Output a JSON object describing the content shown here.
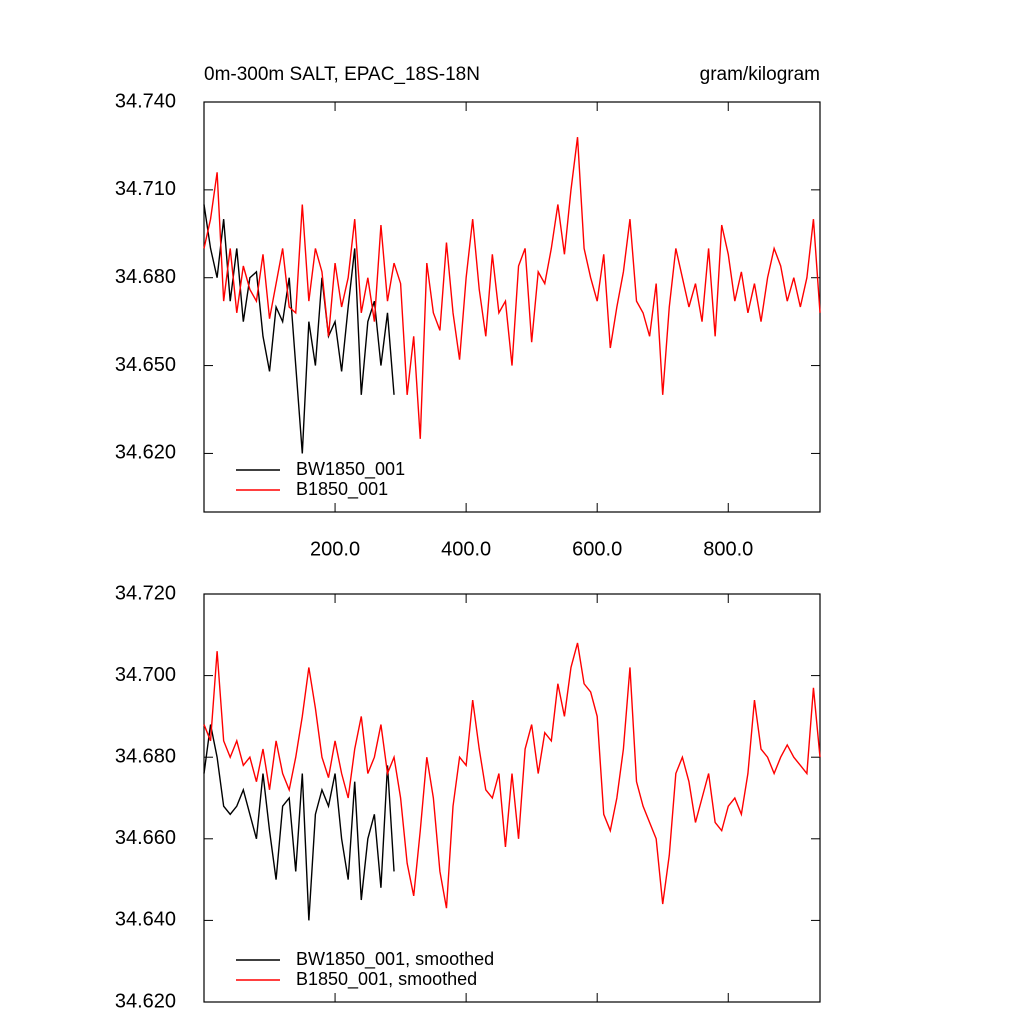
{
  "chart_data": [
    {
      "type": "line",
      "title": "0m-300m SALT, EPAC_18S-18N",
      "units": "gram/kilogram",
      "xlim": [
        0,
        940
      ],
      "xticks": [
        {
          "value": 200,
          "label": "200.0"
        },
        {
          "value": 400,
          "label": "400.0"
        },
        {
          "value": 600,
          "label": "600.0"
        },
        {
          "value": 800,
          "label": "800.0"
        }
      ],
      "ylim": [
        34.6,
        34.74
      ],
      "yticks": [
        {
          "value": 34.62,
          "label": "34.620"
        },
        {
          "value": 34.65,
          "label": "34.650"
        },
        {
          "value": 34.68,
          "label": "34.680"
        },
        {
          "value": 34.71,
          "label": "34.710"
        },
        {
          "value": 34.74,
          "label": "34.740"
        }
      ],
      "legend": "lower left",
      "series": [
        {
          "name": "BW1850_001",
          "color": "#000000",
          "x": [
            0,
            10,
            20,
            30,
            40,
            50,
            60,
            70,
            80,
            90,
            100,
            110,
            120,
            130,
            140,
            150,
            160,
            170,
            180,
            190,
            200,
            210,
            220,
            230,
            240,
            250,
            260,
            270,
            280,
            290
          ],
          "values": [
            34.705,
            34.69,
            34.68,
            34.7,
            34.672,
            34.69,
            34.665,
            34.68,
            34.682,
            34.66,
            34.648,
            34.67,
            34.665,
            34.68,
            34.65,
            34.62,
            34.665,
            34.65,
            34.68,
            34.66,
            34.665,
            34.648,
            34.67,
            34.69,
            34.64,
            34.665,
            34.672,
            34.65,
            34.668,
            34.64
          ]
        },
        {
          "name": "B1850_001",
          "color": "#ff0000",
          "x": [
            0,
            10,
            20,
            30,
            40,
            50,
            60,
            70,
            80,
            90,
            100,
            110,
            120,
            130,
            140,
            150,
            160,
            170,
            180,
            190,
            200,
            210,
            220,
            230,
            240,
            250,
            260,
            270,
            280,
            290,
            300,
            310,
            320,
            330,
            340,
            350,
            360,
            370,
            380,
            390,
            400,
            410,
            420,
            430,
            440,
            450,
            460,
            470,
            480,
            490,
            500,
            510,
            520,
            530,
            540,
            550,
            560,
            570,
            580,
            590,
            600,
            610,
            620,
            630,
            640,
            650,
            660,
            670,
            680,
            690,
            700,
            710,
            720,
            730,
            740,
            750,
            760,
            770,
            780,
            790,
            800,
            810,
            820,
            830,
            840,
            850,
            860,
            870,
            880,
            890,
            900,
            910,
            920,
            930,
            940
          ],
          "values": [
            34.69,
            34.7,
            34.716,
            34.672,
            34.69,
            34.668,
            34.684,
            34.676,
            34.672,
            34.688,
            34.666,
            34.678,
            34.69,
            34.67,
            34.668,
            34.705,
            34.672,
            34.69,
            34.682,
            34.66,
            34.685,
            34.67,
            34.68,
            34.7,
            34.668,
            34.68,
            34.665,
            34.698,
            34.672,
            34.685,
            34.678,
            34.64,
            34.66,
            34.625,
            34.685,
            34.668,
            34.662,
            34.692,
            34.668,
            34.652,
            34.68,
            34.7,
            34.676,
            34.66,
            34.688,
            34.668,
            34.672,
            34.65,
            34.684,
            34.69,
            34.658,
            34.682,
            34.678,
            34.69,
            34.705,
            34.688,
            34.71,
            34.728,
            34.69,
            34.68,
            34.672,
            34.688,
            34.656,
            34.67,
            34.682,
            34.7,
            34.672,
            34.668,
            34.66,
            34.678,
            34.64,
            34.67,
            34.69,
            34.68,
            34.67,
            34.678,
            34.665,
            34.69,
            34.66,
            34.698,
            34.688,
            34.672,
            34.682,
            34.668,
            34.678,
            34.665,
            34.68,
            34.69,
            34.684,
            34.672,
            34.68,
            34.67,
            34.68,
            34.7,
            34.668
          ]
        }
      ]
    },
    {
      "type": "line",
      "xlim": [
        0,
        940
      ],
      "xticks": [
        200,
        400,
        600,
        800
      ],
      "ylim": [
        34.62,
        34.72
      ],
      "yticks": [
        {
          "value": 34.62,
          "label": "34.620"
        },
        {
          "value": 34.64,
          "label": "34.640"
        },
        {
          "value": 34.66,
          "label": "34.660"
        },
        {
          "value": 34.68,
          "label": "34.680"
        },
        {
          "value": 34.7,
          "label": "34.700"
        },
        {
          "value": 34.72,
          "label": "34.720"
        }
      ],
      "legend": "lower left",
      "series": [
        {
          "name": "BW1850_001, smoothed",
          "color": "#000000",
          "x": [
            0,
            10,
            20,
            30,
            40,
            50,
            60,
            70,
            80,
            90,
            100,
            110,
            120,
            130,
            140,
            150,
            160,
            170,
            180,
            190,
            200,
            210,
            220,
            230,
            240,
            250,
            260,
            270,
            280,
            290
          ],
          "values": [
            34.676,
            34.688,
            34.68,
            34.668,
            34.666,
            34.668,
            34.672,
            34.666,
            34.66,
            34.676,
            34.662,
            34.65,
            34.668,
            34.67,
            34.652,
            34.676,
            34.64,
            34.666,
            34.672,
            34.668,
            34.676,
            34.66,
            34.65,
            34.674,
            34.645,
            34.66,
            34.666,
            34.648,
            34.678,
            34.652
          ]
        },
        {
          "name": "B1850_001, smoothed",
          "color": "#ff0000",
          "x": [
            0,
            10,
            20,
            30,
            40,
            50,
            60,
            70,
            80,
            90,
            100,
            110,
            120,
            130,
            140,
            150,
            160,
            170,
            180,
            190,
            200,
            210,
            220,
            230,
            240,
            250,
            260,
            270,
            280,
            290,
            300,
            310,
            320,
            330,
            340,
            350,
            360,
            370,
            380,
            390,
            400,
            410,
            420,
            430,
            440,
            450,
            460,
            470,
            480,
            490,
            500,
            510,
            520,
            530,
            540,
            550,
            560,
            570,
            580,
            590,
            600,
            610,
            620,
            630,
            640,
            650,
            660,
            670,
            680,
            690,
            700,
            710,
            720,
            730,
            740,
            750,
            760,
            770,
            780,
            790,
            800,
            810,
            820,
            830,
            840,
            850,
            860,
            870,
            880,
            890,
            900,
            910,
            920,
            930,
            940
          ],
          "values": [
            34.688,
            34.684,
            34.706,
            34.684,
            34.68,
            34.684,
            34.678,
            34.68,
            34.674,
            34.682,
            34.672,
            34.684,
            34.676,
            34.672,
            34.68,
            34.69,
            34.702,
            34.692,
            34.68,
            34.675,
            34.684,
            34.676,
            34.67,
            34.682,
            34.69,
            34.676,
            34.68,
            34.688,
            34.676,
            34.68,
            34.67,
            34.654,
            34.646,
            34.662,
            34.68,
            34.67,
            34.652,
            34.643,
            34.668,
            34.68,
            34.678,
            34.694,
            34.682,
            34.672,
            34.67,
            34.676,
            34.658,
            34.676,
            34.66,
            34.682,
            34.688,
            34.676,
            34.686,
            34.684,
            34.698,
            34.69,
            34.702,
            34.708,
            34.698,
            34.696,
            34.69,
            34.666,
            34.662,
            34.67,
            34.682,
            34.702,
            34.674,
            34.668,
            34.664,
            34.66,
            34.644,
            34.656,
            34.676,
            34.68,
            34.674,
            34.664,
            34.67,
            34.676,
            34.664,
            34.662,
            34.668,
            34.67,
            34.666,
            34.676,
            34.694,
            34.682,
            34.68,
            34.676,
            34.68,
            34.683,
            34.68,
            34.678,
            34.676,
            34.697,
            34.68
          ]
        }
      ]
    }
  ]
}
